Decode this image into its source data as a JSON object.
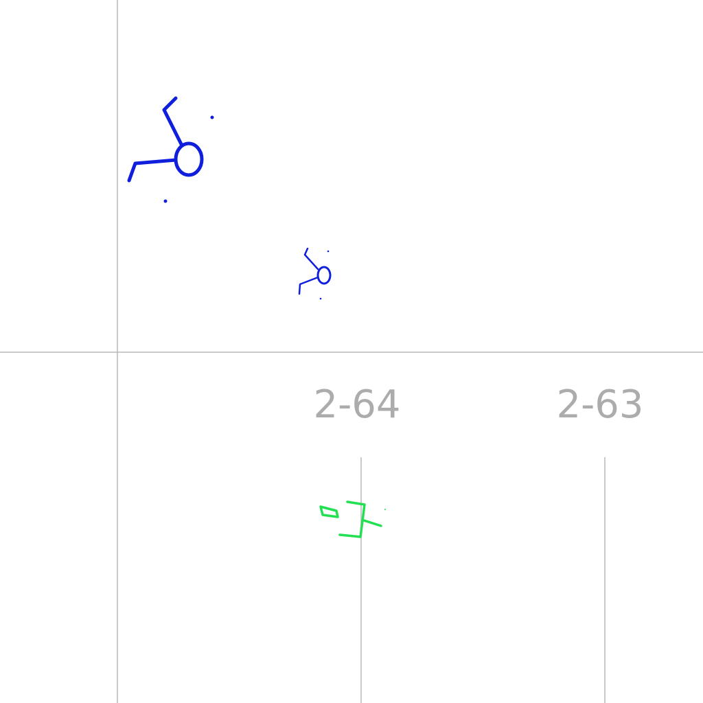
{
  "diagram": {
    "background_color": "#ffffff",
    "line_color": "#b8b8b8",
    "label_color": "#acacac",
    "labels": [
      "2-64",
      "2-63"
    ],
    "symbols": [
      {
        "name": "blue-stick-figure-symbol",
        "color": "#0f1fdc"
      },
      {
        "name": "blue-stick-figure-symbol-small",
        "color": "#0f1fdc"
      },
      {
        "name": "green-glyph-symbol",
        "color": "#22e052"
      }
    ]
  }
}
